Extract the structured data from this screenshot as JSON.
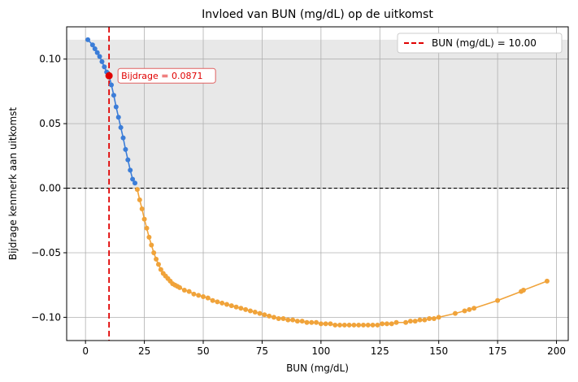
{
  "chart_data": {
    "type": "line",
    "title": "Invloed van BUN (mg/dL) op de uitkomst",
    "xlabel": "BUN (mg/dL)",
    "ylabel": "Bijdrage kenmerk aan uitkomst",
    "xlim": [
      -8,
      205
    ],
    "ylim": [
      -0.118,
      0.125
    ],
    "xticks": [
      0,
      25,
      50,
      75,
      100,
      125,
      150,
      175,
      200
    ],
    "yticks": [
      0.1,
      0.05,
      0.0,
      -0.05,
      -0.1
    ],
    "xtick_labels": [
      "0",
      "25",
      "50",
      "75",
      "100",
      "125",
      "150",
      "175",
      "200"
    ],
    "ytick_labels": [
      "0.10",
      "0.05",
      "0.00",
      "−0.05",
      "−0.10"
    ],
    "grid": true,
    "shaded_band": {
      "y_from": 0.0,
      "y_to": 0.115,
      "color": "#e8e8e8"
    },
    "zero_line": {
      "y": 0.0,
      "style": "dashed",
      "color": "#000000"
    },
    "reference_line": {
      "x": 10.0,
      "color": "#e00000",
      "style": "dashed"
    },
    "legend": {
      "placement": "top-right",
      "entries": [
        "BUN (mg/dL) = 10.00"
      ]
    },
    "highlight_point": {
      "x": 10.0,
      "y": 0.0871,
      "color": "#e00000"
    },
    "annotation": {
      "text": "Bijdrage = 0.0871",
      "x": 10.0,
      "y": 0.0871
    },
    "series": [
      {
        "color": "#3b7dd8",
        "x": [
          1,
          3,
          4,
          5,
          6,
          7,
          8,
          9,
          10,
          11,
          12,
          13,
          14,
          15,
          16,
          17,
          18,
          19,
          20,
          21
        ],
        "y": [
          0.115,
          0.111,
          0.108,
          0.105,
          0.102,
          0.098,
          0.094,
          0.09,
          0.087,
          0.08,
          0.072,
          0.063,
          0.055,
          0.047,
          0.039,
          0.03,
          0.022,
          0.014,
          0.007,
          0.004
        ]
      },
      {
        "color": "#f0a33a",
        "x": [
          22,
          23,
          24,
          25,
          26,
          27,
          28,
          29,
          30,
          31,
          32,
          33,
          34,
          35,
          36,
          37,
          38,
          39,
          40,
          42,
          44,
          46,
          48,
          50,
          52,
          54,
          56,
          58,
          60,
          62,
          64,
          66,
          68,
          70,
          72,
          74,
          76,
          78,
          80,
          82,
          84,
          86,
          88,
          90,
          92,
          94,
          96,
          98,
          100,
          102,
          104,
          106,
          108,
          110,
          112,
          114,
          116,
          118,
          120,
          122,
          124,
          126,
          128,
          130,
          132,
          136,
          138,
          140,
          142,
          144,
          146,
          148,
          150,
          157,
          161,
          163,
          165,
          175,
          185,
          186,
          196
        ],
        "y": [
          -0.001,
          -0.009,
          -0.016,
          -0.024,
          -0.031,
          -0.038,
          -0.044,
          -0.05,
          -0.055,
          -0.059,
          -0.063,
          -0.066,
          -0.068,
          -0.07,
          -0.072,
          -0.074,
          -0.075,
          -0.076,
          -0.077,
          -0.079,
          -0.08,
          -0.082,
          -0.083,
          -0.084,
          -0.085,
          -0.087,
          -0.088,
          -0.089,
          -0.09,
          -0.091,
          -0.092,
          -0.093,
          -0.094,
          -0.095,
          -0.096,
          -0.097,
          -0.098,
          -0.099,
          -0.1,
          -0.101,
          -0.101,
          -0.102,
          -0.102,
          -0.103,
          -0.103,
          -0.104,
          -0.104,
          -0.104,
          -0.105,
          -0.105,
          -0.105,
          -0.106,
          -0.106,
          -0.106,
          -0.106,
          -0.106,
          -0.106,
          -0.106,
          -0.106,
          -0.106,
          -0.106,
          -0.105,
          -0.105,
          -0.105,
          -0.104,
          -0.104,
          -0.103,
          -0.103,
          -0.102,
          -0.102,
          -0.101,
          -0.101,
          -0.1,
          -0.097,
          -0.095,
          -0.094,
          -0.093,
          -0.087,
          -0.08,
          -0.079,
          -0.072
        ]
      }
    ]
  }
}
